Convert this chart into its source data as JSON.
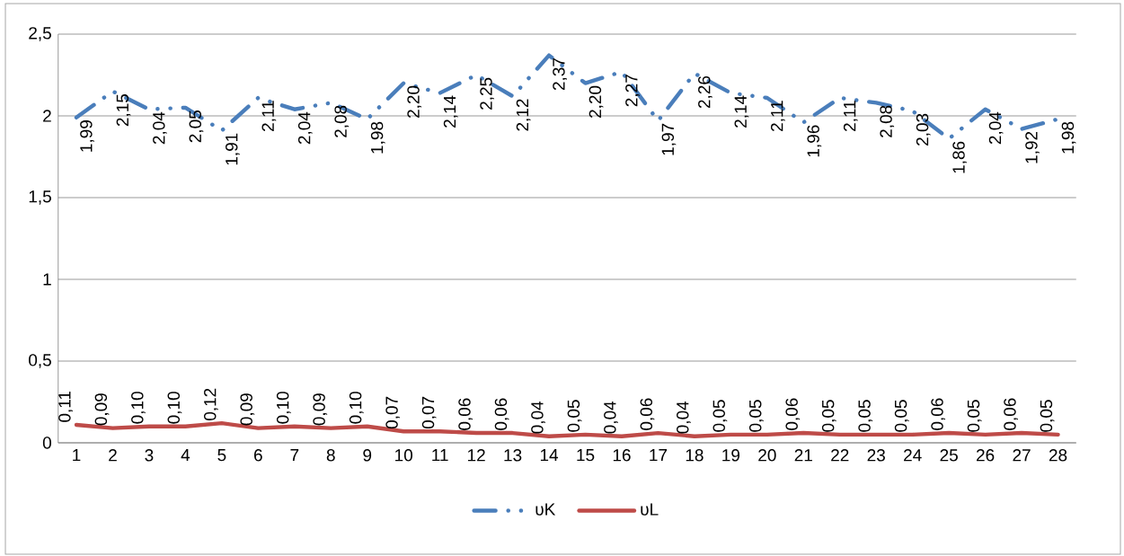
{
  "chart_data": {
    "type": "line",
    "categories": [
      "1",
      "2",
      "3",
      "4",
      "5",
      "6",
      "7",
      "8",
      "9",
      "10",
      "11",
      "12",
      "13",
      "14",
      "15",
      "16",
      "17",
      "18",
      "19",
      "20",
      "21",
      "22",
      "23",
      "24",
      "25",
      "26",
      "27",
      "28"
    ],
    "series": [
      {
        "name": "υK",
        "color": "#4a7ebb",
        "line_style": "dashdot",
        "values": [
          1.99,
          2.15,
          2.04,
          2.05,
          1.91,
          2.11,
          2.04,
          2.08,
          1.98,
          2.2,
          2.14,
          2.25,
          2.12,
          2.37,
          2.2,
          2.27,
          1.97,
          2.26,
          2.14,
          2.11,
          1.96,
          2.11,
          2.08,
          2.03,
          1.86,
          2.04,
          1.92,
          1.98
        ],
        "value_labels": [
          "1,99",
          "2,15",
          "2,04",
          "2,05",
          "1,91",
          "2,11",
          "2,04",
          "2,08",
          "1,98",
          "2,20",
          "2,14",
          "2,25",
          "2,12",
          "2,37",
          "2,20",
          "2,27",
          "1,97",
          "2,26",
          "2,14",
          "2,11",
          "1,96",
          "2,11",
          "2,08",
          "2,03",
          "1,86",
          "2,04",
          "1,92",
          "1,98"
        ]
      },
      {
        "name": "υL",
        "color": "#be4b48",
        "line_style": "solid",
        "values": [
          0.11,
          0.09,
          0.1,
          0.1,
          0.12,
          0.09,
          0.1,
          0.09,
          0.1,
          0.07,
          0.07,
          0.06,
          0.06,
          0.04,
          0.05,
          0.04,
          0.06,
          0.04,
          0.05,
          0.05,
          0.06,
          0.05,
          0.05,
          0.05,
          0.06,
          0.05,
          0.06,
          0.05
        ],
        "value_labels": [
          "0,11",
          "0,09",
          "0,10",
          "0,10",
          "0,12",
          "0,09",
          "0,10",
          "0,09",
          "0,10",
          "0,07",
          "0,07",
          "0,06",
          "0,06",
          "0,04",
          "0,05",
          "0,04",
          "0,06",
          "0,04",
          "0,05",
          "0,05",
          "0,06",
          "0,05",
          "0,05",
          "0,05",
          "0,06",
          "0,05",
          "0,06",
          "0,05"
        ]
      }
    ],
    "ylim": [
      0,
      2.5
    ],
    "yticks": [
      0,
      {
        "value": 0.5,
        "label": "0,5"
      },
      1,
      {
        "value": 1.5,
        "label": "1,5"
      },
      2,
      {
        "value": 2.5,
        "label": "2,5"
      }
    ],
    "grid": "y",
    "legend": "bottom",
    "marker": "none"
  }
}
